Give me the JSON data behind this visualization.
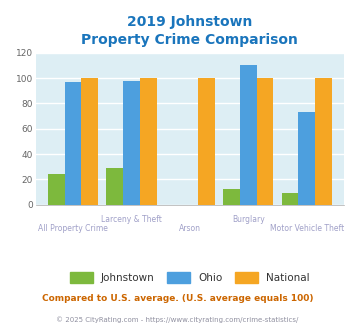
{
  "title_line1": "2019 Johnstown",
  "title_line2": "Property Crime Comparison",
  "cat_line1": [
    "",
    "Larceny & Theft",
    "",
    "Burglary",
    ""
  ],
  "cat_line2": [
    "All Property Crime",
    "",
    "Arson",
    "",
    "Motor Vehicle Theft"
  ],
  "johnstown": [
    24,
    29,
    0,
    12,
    9
  ],
  "ohio": [
    97,
    98,
    0,
    110,
    73
  ],
  "national": [
    100,
    100,
    100,
    100,
    100
  ],
  "johnstown_color": "#7db93d",
  "ohio_color": "#4d9fde",
  "national_color": "#f5a623",
  "title_color": "#1a75bc",
  "bg_color": "#ddeef4",
  "plot_bg": "#ffffff",
  "ylim": [
    0,
    120
  ],
  "yticks": [
    0,
    20,
    40,
    60,
    80,
    100,
    120
  ],
  "xlabel_color": "#a0a0c8",
  "footer_text": "Compared to U.S. average. (U.S. average equals 100)",
  "credit_text": "© 2025 CityRating.com - https://www.cityrating.com/crime-statistics/",
  "footer_color": "#cc6600",
  "credit_color": "#9090a0"
}
